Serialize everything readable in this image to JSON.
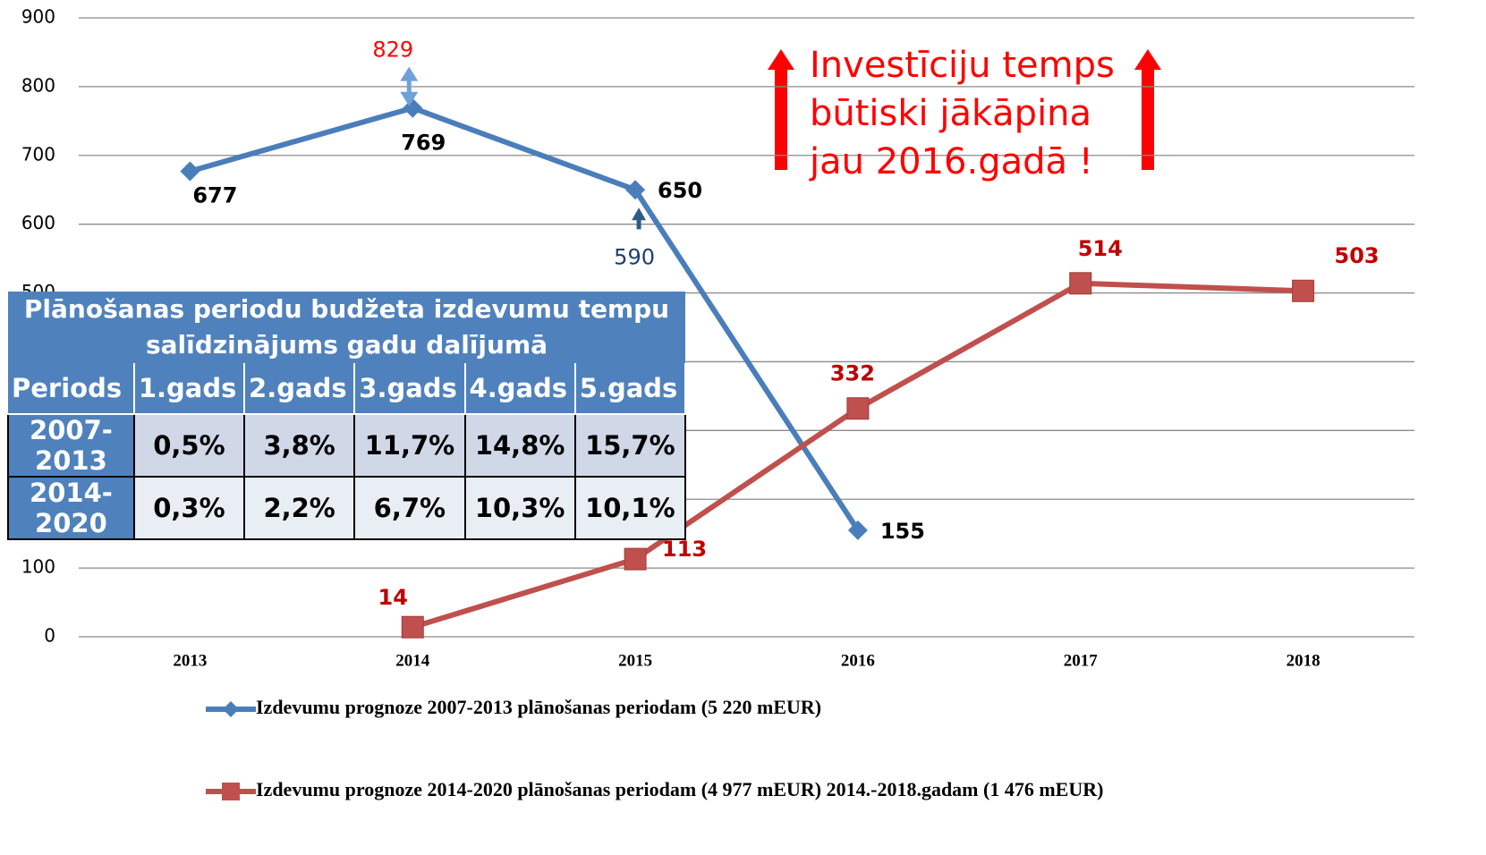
{
  "chart_data": {
    "type": "line",
    "categories": [
      "2013",
      "2014",
      "2015",
      "2016",
      "2017",
      "2018"
    ],
    "series": [
      {
        "name": "Izdevumu prognoze 2007-2013 plānošanas periodam (5 220 mEUR)",
        "color": "#4a7ebb",
        "marker": "diamond",
        "label_color": "#000000",
        "values": [
          677,
          769,
          650,
          155,
          null,
          null
        ]
      },
      {
        "name": "Izdevumu prognoze 2014-2020 plānošanas periodam (4 977 mEUR) 2014.-2018.gadam (1 476 mEUR)",
        "color": "#c0504d",
        "marker": "square",
        "label_color": "#c00000",
        "values": [
          null,
          14,
          113,
          332,
          514,
          503
        ]
      }
    ],
    "ylim": [
      0,
      900
    ],
    "yticks": [
      0,
      100,
      200,
      300,
      400,
      500,
      600,
      700,
      800,
      900
    ],
    "grid": true,
    "annotations": [
      {
        "value": 829,
        "x": "2014",
        "color": "#ff0000"
      },
      {
        "value": 590,
        "x": "2015",
        "color": "#1f3f6f"
      }
    ],
    "callout": [
      "Investīciju temps",
      "būtiski jākāpina",
      "jau 2016.gadā !"
    ]
  },
  "table": {
    "title": "Plānošanas periodu budžeta izdevumu tempu salīdzinājums gadu dalījumā",
    "header": [
      "Periods",
      "1.gads",
      "2.gads",
      "3.gads",
      "4.gads",
      "5.gads"
    ],
    "rows": [
      [
        "2007-2013",
        "0,5%",
        "3,8%",
        "11,7%",
        "14,8%",
        "15,7%"
      ],
      [
        "2014-2020",
        "0,3%",
        "2,2%",
        "6,7%",
        "10,3%",
        "10,1%"
      ]
    ]
  }
}
